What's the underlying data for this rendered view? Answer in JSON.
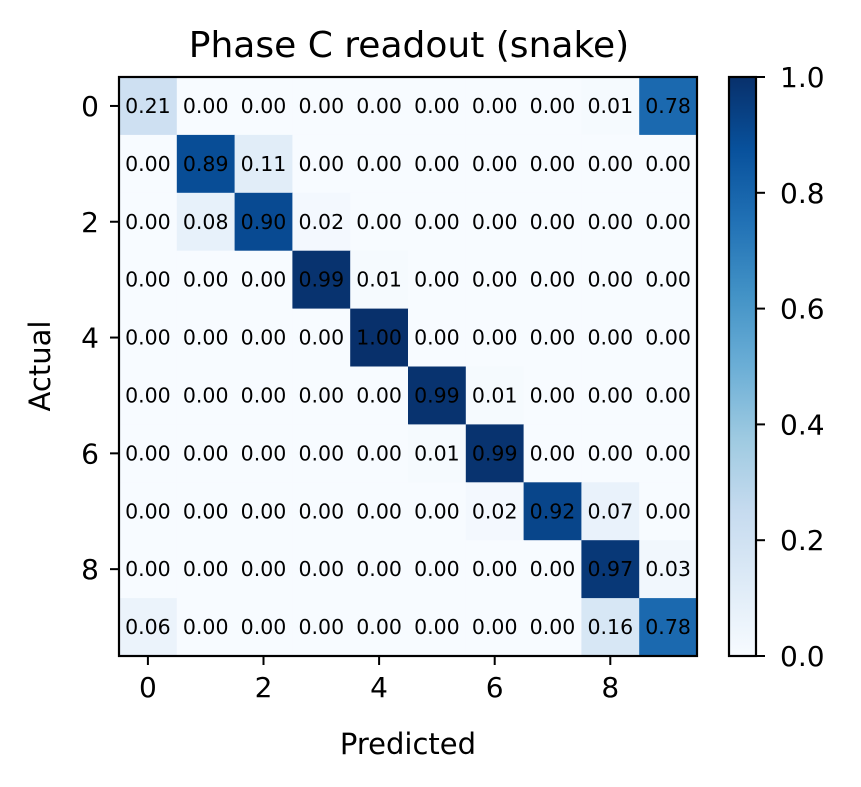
{
  "chart_data": {
    "type": "heatmap",
    "title": "Phase C readout (snake)",
    "xlabel": "Predicted",
    "ylabel": "Actual",
    "x_ticks": [
      "0",
      "2",
      "4",
      "6",
      "8"
    ],
    "y_ticks": [
      "0",
      "2",
      "4",
      "6",
      "8"
    ],
    "colorbar_ticks": [
      "0.0",
      "0.2",
      "0.4",
      "0.6",
      "0.8",
      "1.0"
    ],
    "colormap": "Blues",
    "value_range": [
      0,
      1
    ],
    "matrix": [
      [
        0.21,
        0.0,
        0.0,
        0.0,
        0.0,
        0.0,
        0.0,
        0.0,
        0.01,
        0.78
      ],
      [
        0.0,
        0.89,
        0.11,
        0.0,
        0.0,
        0.0,
        0.0,
        0.0,
        0.0,
        0.0
      ],
      [
        0.0,
        0.08,
        0.9,
        0.02,
        0.0,
        0.0,
        0.0,
        0.0,
        0.0,
        0.0
      ],
      [
        0.0,
        0.0,
        0.0,
        0.99,
        0.01,
        0.0,
        0.0,
        0.0,
        0.0,
        0.0
      ],
      [
        0.0,
        0.0,
        0.0,
        0.0,
        1.0,
        0.0,
        0.0,
        0.0,
        0.0,
        0.0
      ],
      [
        0.0,
        0.0,
        0.0,
        0.0,
        0.0,
        0.99,
        0.01,
        0.0,
        0.0,
        0.0
      ],
      [
        0.0,
        0.0,
        0.0,
        0.0,
        0.0,
        0.01,
        0.99,
        0.0,
        0.0,
        0.0
      ],
      [
        0.0,
        0.0,
        0.0,
        0.0,
        0.0,
        0.0,
        0.02,
        0.92,
        0.07,
        0.0
      ],
      [
        0.0,
        0.0,
        0.0,
        0.0,
        0.0,
        0.0,
        0.0,
        0.0,
        0.97,
        0.03
      ],
      [
        0.06,
        0.0,
        0.0,
        0.0,
        0.0,
        0.0,
        0.0,
        0.0,
        0.16,
        0.78
      ]
    ]
  }
}
